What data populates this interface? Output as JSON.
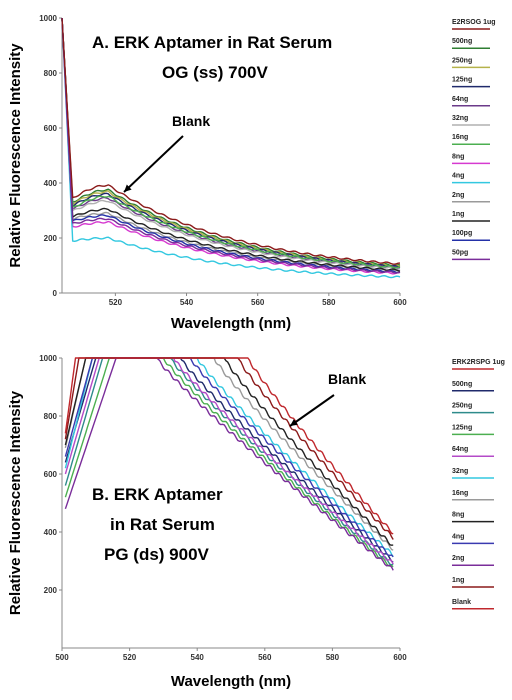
{
  "chart_data": [
    {
      "type": "line",
      "title": "A. ERK Aptamer in Rat Serum",
      "subtitle": "OG (ss) 700V",
      "xlabel": "Wavelength (nm)",
      "ylabel": "Relative Fluorescence Intensity",
      "xlim": [
        505,
        600
      ],
      "ylim": [
        0,
        1000
      ],
      "xticks": [
        520,
        540,
        560,
        580,
        600
      ],
      "yticks": [
        0,
        200,
        400,
        600,
        800,
        1000
      ],
      "grid": false,
      "legend_position": "right",
      "annotation": {
        "text": "Blank",
        "x": 519,
        "y": 385
      },
      "legend_title": "E2RSOG 1ug",
      "peak_x": 518,
      "series": [
        {
          "name": "500ng",
          "color": "#2e7d32",
          "start": 1000,
          "dip": 330,
          "peak": 375,
          "end": 65
        },
        {
          "name": "250ng",
          "color": "#b5b24a",
          "start": 1000,
          "dip": 325,
          "peak": 368,
          "end": 63
        },
        {
          "name": "125ng",
          "color": "#1f2a6b",
          "start": 1000,
          "dip": 318,
          "peak": 360,
          "end": 62
        },
        {
          "name": "64ng",
          "color": "#6b3a8a",
          "start": 1000,
          "dip": 305,
          "peak": 345,
          "end": 60
        },
        {
          "name": "32ng",
          "color": "#b0b0b0",
          "start": 1000,
          "dip": 298,
          "peak": 335,
          "end": 58
        },
        {
          "name": "16ng",
          "color": "#4caf50",
          "start": 1000,
          "dip": 310,
          "peak": 352,
          "end": 61
        },
        {
          "name": "8ng",
          "color": "#d63ad0",
          "start": 1000,
          "dip": 240,
          "peak": 258,
          "end": 48
        },
        {
          "name": "4ng",
          "color": "#33c8e0",
          "start": 1000,
          "dip": 190,
          "peak": 200,
          "end": 40
        },
        {
          "name": "2ng",
          "color": "#9a9a9a",
          "start": 1000,
          "dip": 270,
          "peak": 290,
          "end": 53
        },
        {
          "name": "1ng",
          "color": "#222222",
          "start": 1000,
          "dip": 278,
          "peak": 305,
          "end": 55
        },
        {
          "name": "100pg",
          "color": "#2431a8",
          "start": 1000,
          "dip": 262,
          "peak": 282,
          "end": 51
        },
        {
          "name": "50pg",
          "color": "#7a2d9a",
          "start": 1000,
          "dip": 252,
          "peak": 270,
          "end": 50
        },
        {
          "name": "Blank",
          "color": "#8b1a1a",
          "start": 1000,
          "dip": 345,
          "peak": 392,
          "end": 70,
          "show_in_legend": false
        }
      ]
    },
    {
      "type": "line",
      "title": "B. ERK Aptamer",
      "subtitle": "in Rat Serum",
      "subtitle2": "PG (ds) 900V",
      "xlabel": "Wavelength (nm)",
      "ylabel": "Relative Fluorescence Intensity",
      "xlim": [
        500,
        600
      ],
      "ylim": [
        0,
        1000
      ],
      "xticks": [
        500,
        520,
        540,
        560,
        580,
        600
      ],
      "yticks": [
        200,
        400,
        600,
        800,
        1000
      ],
      "grid": false,
      "legend_position": "right",
      "annotation": {
        "text": "Blank",
        "x": 562,
        "y": 740
      },
      "legend_title": "ERK2RSPG 1ug",
      "series": [
        {
          "name": "500ng",
          "color": "#1f2a6b",
          "start": 640,
          "rise": 510,
          "fall": 535,
          "end": 300
        },
        {
          "name": "250ng",
          "color": "#2e8b8b",
          "start": 560,
          "rise": 512,
          "fall": 532,
          "end": 285
        },
        {
          "name": "125ng",
          "color": "#4caf50",
          "start": 520,
          "rise": 514,
          "fall": 530,
          "end": 275
        },
        {
          "name": "64ng",
          "color": "#b44ac8",
          "start": 600,
          "rise": 511,
          "fall": 533,
          "end": 290
        },
        {
          "name": "32ng",
          "color": "#33c8e0",
          "start": 620,
          "rise": 509,
          "fall": 540,
          "end": 320
        },
        {
          "name": "16ng",
          "color": "#9a9a9a",
          "start": 690,
          "rise": 507,
          "fall": 545,
          "end": 340
        },
        {
          "name": "8ng",
          "color": "#222222",
          "start": 700,
          "rise": 507,
          "fall": 548,
          "end": 350
        },
        {
          "name": "4ng",
          "color": "#3a3ab0",
          "start": 660,
          "rise": 509,
          "fall": 538,
          "end": 310
        },
        {
          "name": "2ng",
          "color": "#7a2d9a",
          "start": 480,
          "rise": 516,
          "fall": 528,
          "end": 270
        },
        {
          "name": "1ng",
          "color": "#8b1a1a",
          "start": 720,
          "rise": 505,
          "fall": 552,
          "end": 380
        },
        {
          "name": "Blank",
          "color": "#c0282d",
          "start": 740,
          "rise": 504,
          "fall": 555,
          "end": 395
        }
      ]
    }
  ]
}
